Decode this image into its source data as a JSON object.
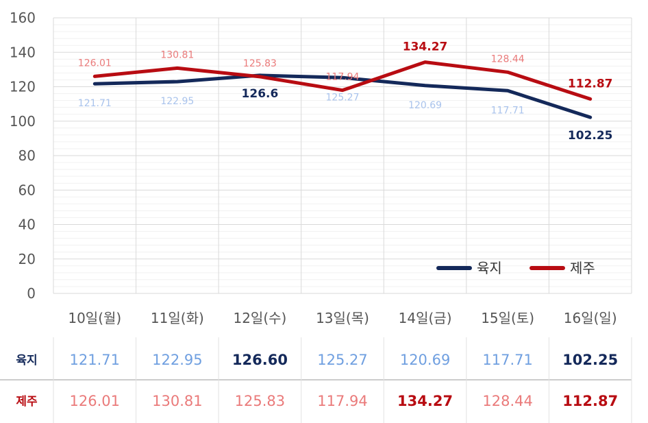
{
  "chart_data": {
    "type": "line",
    "categories": [
      "10일(월)",
      "11일(화)",
      "12일(수)",
      "13일(목)",
      "14일(금)",
      "15일(토)",
      "16일(일)"
    ],
    "ylim": [
      0,
      160
    ],
    "yticks": [
      0,
      20,
      40,
      60,
      80,
      100,
      120,
      140,
      160
    ],
    "grid": true,
    "legend": "bottom-right",
    "series": [
      {
        "name": "육지",
        "color": "#14295a",
        "label_color": "#a9c3ec",
        "table_color": "#6f9fe0",
        "values": [
          121.71,
          122.95,
          126.6,
          125.27,
          120.69,
          117.71,
          102.25
        ],
        "chart_labels": [
          "121.71",
          "122.95",
          "126.6",
          "125.27",
          "120.69",
          "117.71",
          "102.25"
        ],
        "table_labels": [
          "121.71",
          "122.95",
          "126.60",
          "125.27",
          "120.69",
          "117.71",
          "102.25"
        ],
        "highlight": [
          false,
          false,
          true,
          false,
          false,
          false,
          true
        ]
      },
      {
        "name": "제주",
        "color": "#b80c12",
        "label_color": "#ea7a7a",
        "table_color": "#ea7a7a",
        "values": [
          126.01,
          130.81,
          125.83,
          117.94,
          134.27,
          128.44,
          112.87
        ],
        "chart_labels": [
          "126.01",
          "130.81",
          "125.83",
          "117.94",
          "134.27",
          "128.44",
          "112.87"
        ],
        "table_labels": [
          "126.01",
          "130.81",
          "125.83",
          "117.94",
          "134.27",
          "128.44",
          "112.87"
        ],
        "highlight": [
          false,
          false,
          false,
          false,
          true,
          false,
          true
        ]
      }
    ]
  }
}
